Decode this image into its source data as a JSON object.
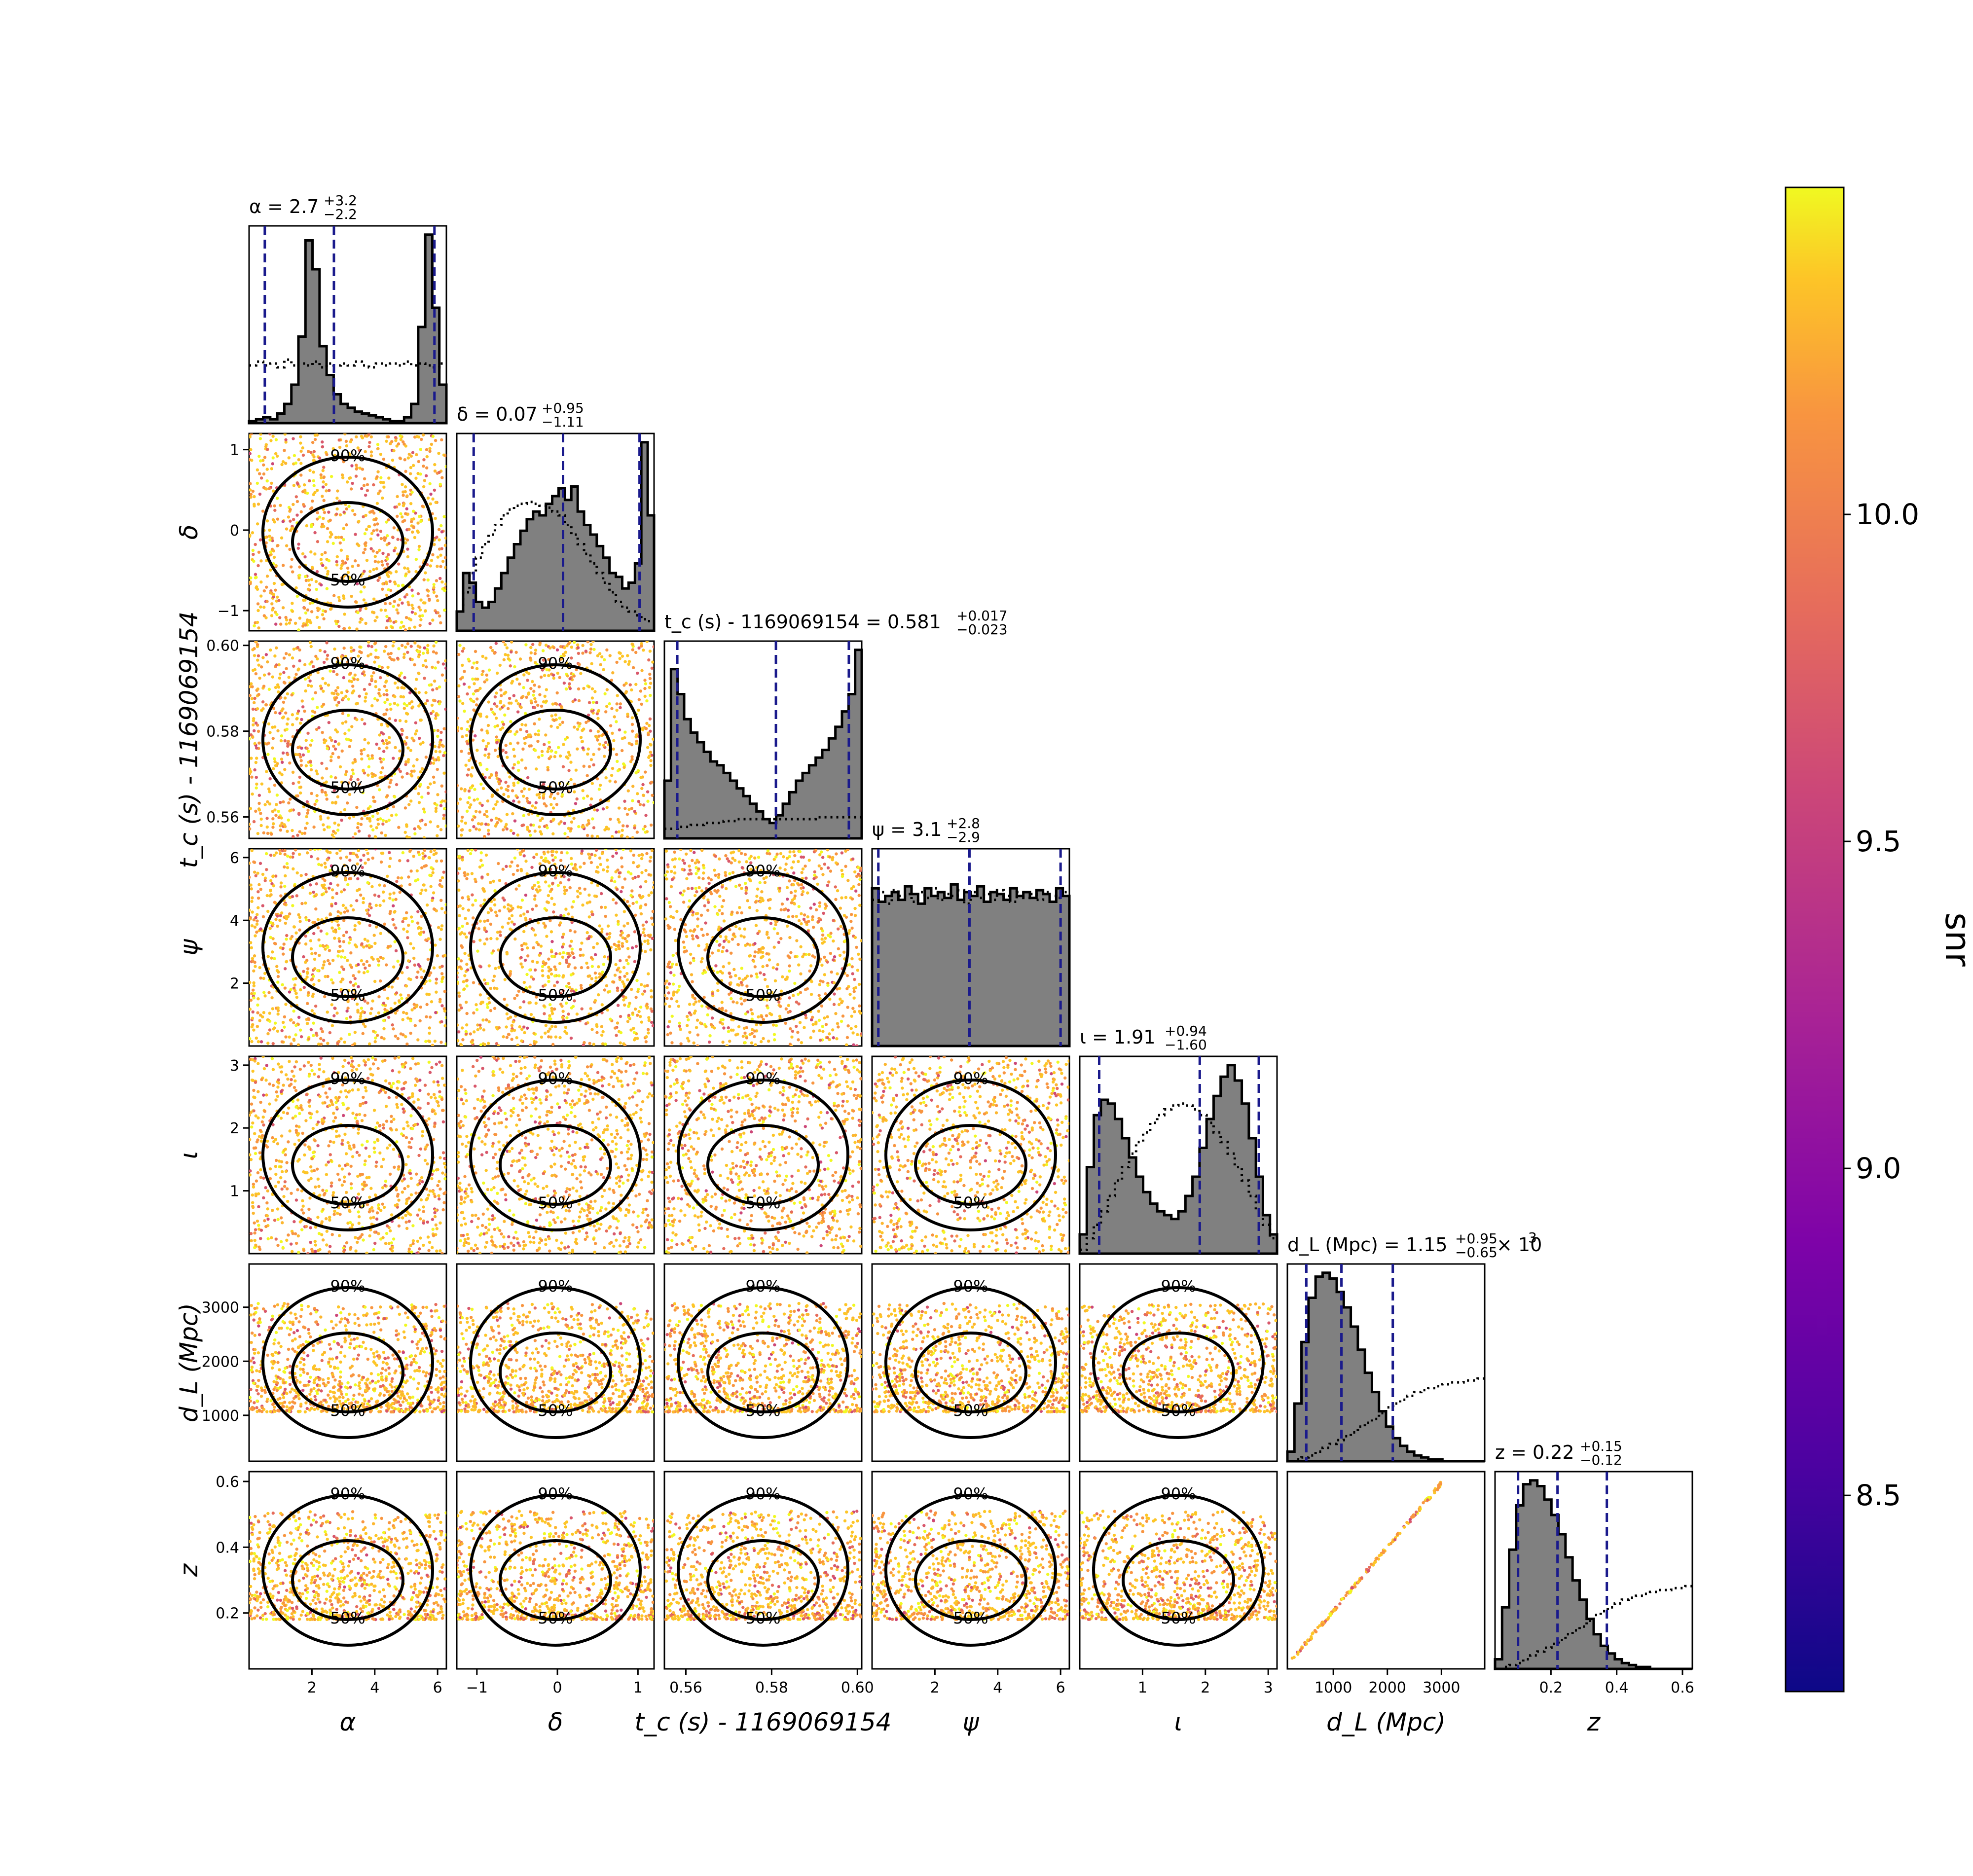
{
  "parameters": [
    {
      "key": "ra",
      "label": "α",
      "range": [
        0,
        6.28
      ],
      "ticks": [
        2,
        4,
        6
      ],
      "tick_labels": [
        "2",
        "4",
        "6"
      ],
      "median": 2.7,
      "lower": 0.5,
      "upper": 5.9,
      "title": "α = 2.7",
      "err_up": "+3.2",
      "err_dn": "−2.2",
      "hist_bins": [
        0.01,
        0.02,
        0.03,
        0.02,
        0.05,
        0.1,
        0.2,
        0.45,
        0.95,
        0.8,
        0.4,
        0.25,
        0.15,
        0.1,
        0.08,
        0.06,
        0.05,
        0.04,
        0.03,
        0.02,
        0.01,
        0.01,
        0.03,
        0.1,
        0.5,
        0.98,
        0.6,
        0.2
      ],
      "prior_bins": [
        0.3,
        0.32,
        0.3,
        0.31,
        0.29,
        0.33,
        0.3,
        0.31,
        0.3,
        0.32,
        0.29,
        0.31,
        0.3,
        0.31,
        0.3,
        0.32,
        0.3,
        0.29,
        0.31,
        0.3,
        0.31,
        0.3,
        0.32,
        0.3,
        0.31,
        0.3,
        0.29,
        0.31
      ]
    },
    {
      "key": "dec",
      "label": "δ",
      "range": [
        -1.25,
        1.2
      ],
      "ticks": [
        -1,
        0,
        1
      ],
      "tick_labels": [
        "−1",
        "0",
        "1"
      ],
      "median": 0.07,
      "lower": -1.04,
      "upper": 1.02,
      "title": "δ = 0.07",
      "err_up": "+0.95",
      "err_dn": "−1.11",
      "hist_bins": [
        0.1,
        0.3,
        0.25,
        0.15,
        0.12,
        0.15,
        0.22,
        0.3,
        0.38,
        0.45,
        0.52,
        0.58,
        0.62,
        0.6,
        0.66,
        0.7,
        0.74,
        0.68,
        0.75,
        0.62,
        0.55,
        0.5,
        0.44,
        0.38,
        0.3,
        0.28,
        0.22,
        0.25,
        0.35,
        0.98,
        0.6
      ],
      "prior_bins": [
        0.1,
        0.2,
        0.3,
        0.38,
        0.45,
        0.5,
        0.55,
        0.6,
        0.63,
        0.65,
        0.66,
        0.67,
        0.66,
        0.65,
        0.64,
        0.62,
        0.6,
        0.55,
        0.5,
        0.45,
        0.4,
        0.35,
        0.3,
        0.25,
        0.2,
        0.15,
        0.12,
        0.1,
        0.08,
        0.06,
        0.05
      ]
    },
    {
      "key": "tc",
      "label": "t_c (s) - 1169069154",
      "range": [
        0.555,
        0.601
      ],
      "ticks": [
        0.56,
        0.58,
        0.6
      ],
      "tick_labels": [
        "0.56",
        "0.58",
        "0.60"
      ],
      "median": 0.581,
      "lower": 0.558,
      "upper": 0.598,
      "title": "t_c (s) - 1169069154 = 0.581",
      "err_up": "+0.017",
      "err_dn": "−0.023",
      "hist_bins": [
        0.3,
        0.88,
        0.75,
        0.62,
        0.55,
        0.5,
        0.45,
        0.4,
        0.38,
        0.34,
        0.3,
        0.26,
        0.22,
        0.18,
        0.14,
        0.1,
        0.08,
        0.12,
        0.18,
        0.24,
        0.3,
        0.34,
        0.38,
        0.42,
        0.46,
        0.52,
        0.58,
        0.66,
        0.75,
        0.98
      ],
      "prior_bins": [
        0.05,
        0.05,
        0.06,
        0.06,
        0.07,
        0.07,
        0.08,
        0.08,
        0.08,
        0.09,
        0.09,
        0.1,
        0.1,
        0.1,
        0.1,
        0.1,
        0.1,
        0.1,
        0.1,
        0.1,
        0.1,
        0.1,
        0.1,
        0.11,
        0.11,
        0.11,
        0.11,
        0.11,
        0.11,
        0.11
      ]
    },
    {
      "key": "psi",
      "label": "ψ",
      "range": [
        0,
        6.28
      ],
      "ticks": [
        2,
        4,
        6
      ],
      "tick_labels": [
        "2",
        "4",
        "6"
      ],
      "median": 3.1,
      "lower": 0.2,
      "upper": 6.0,
      "title": "ψ = 3.1",
      "err_up": "+2.8",
      "err_dn": "−2.9",
      "hist_bins": [
        0.82,
        0.75,
        0.78,
        0.8,
        0.76,
        0.83,
        0.79,
        0.74,
        0.82,
        0.78,
        0.8,
        0.77,
        0.84,
        0.76,
        0.8,
        0.78,
        0.83,
        0.75,
        0.8,
        0.79,
        0.76,
        0.82,
        0.78,
        0.8,
        0.77,
        0.81,
        0.79,
        0.75,
        0.82,
        0.78
      ],
      "prior_bins": [
        0.76,
        0.8,
        0.74,
        0.81,
        0.78,
        0.79,
        0.75,
        0.8,
        0.77,
        0.82,
        0.76,
        0.79,
        0.78,
        0.81,
        0.74,
        0.8,
        0.77,
        0.79,
        0.76,
        0.81,
        0.78,
        0.75,
        0.8,
        0.77,
        0.79,
        0.76,
        0.8,
        0.78,
        0.77,
        0.8
      ]
    },
    {
      "key": "iota",
      "label": "ι",
      "range": [
        0,
        3.14
      ],
      "ticks": [
        1,
        2,
        3
      ],
      "tick_labels": [
        "1",
        "2",
        "3"
      ],
      "median": 1.91,
      "lower": 0.31,
      "upper": 2.85,
      "title": "ι = 1.91",
      "err_up": "+0.94",
      "err_dn": "−1.60",
      "hist_bins": [
        0.1,
        0.45,
        0.72,
        0.8,
        0.78,
        0.7,
        0.6,
        0.5,
        0.4,
        0.32,
        0.26,
        0.22,
        0.2,
        0.18,
        0.22,
        0.3,
        0.4,
        0.55,
        0.7,
        0.82,
        0.92,
        0.98,
        0.9,
        0.78,
        0.6,
        0.4,
        0.2,
        0.1
      ],
      "prior_bins": [
        0.02,
        0.08,
        0.15,
        0.22,
        0.3,
        0.38,
        0.45,
        0.52,
        0.58,
        0.63,
        0.68,
        0.72,
        0.75,
        0.77,
        0.78,
        0.77,
        0.75,
        0.72,
        0.68,
        0.63,
        0.58,
        0.52,
        0.45,
        0.38,
        0.3,
        0.22,
        0.15,
        0.08
      ]
    },
    {
      "key": "dl",
      "label": "d_L (Mpc)",
      "range": [
        150,
        3800
      ],
      "ticks": [
        1000,
        2000,
        3000
      ],
      "tick_labels": [
        "1000",
        "2000",
        "3000"
      ],
      "median": 1150,
      "lower": 500,
      "upper": 2100,
      "title": "d_L (Mpc) = 1.15",
      "err_up": "+0.95",
      "err_dn": "−0.65",
      "title_suffix": "× 10",
      "hist_bins": [
        0.05,
        0.3,
        0.62,
        0.85,
        0.96,
        0.98,
        0.95,
        0.88,
        0.8,
        0.7,
        0.58,
        0.46,
        0.36,
        0.26,
        0.18,
        0.12,
        0.08,
        0.05,
        0.03,
        0.02,
        0.01,
        0.01,
        0,
        0,
        0,
        0,
        0,
        0
      ],
      "prior_bins": [
        0.0,
        0.01,
        0.02,
        0.03,
        0.05,
        0.07,
        0.09,
        0.11,
        0.13,
        0.15,
        0.18,
        0.2,
        0.22,
        0.25,
        0.28,
        0.3,
        0.32,
        0.34,
        0.36,
        0.37,
        0.38,
        0.39,
        0.4,
        0.41,
        0.41,
        0.42,
        0.42,
        0.43
      ]
    },
    {
      "key": "z",
      "label": "z",
      "range": [
        0.03,
        0.63
      ],
      "ticks": [
        0.2,
        0.4,
        0.6
      ],
      "tick_labels": [
        "0.2",
        "0.4",
        "0.6"
      ],
      "median": 0.22,
      "lower": 0.1,
      "upper": 0.37,
      "title": "z = 0.22",
      "err_up": "+0.15",
      "err_dn": "−0.12",
      "hist_bins": [
        0.05,
        0.32,
        0.62,
        0.85,
        0.96,
        0.98,
        0.95,
        0.88,
        0.8,
        0.7,
        0.58,
        0.46,
        0.36,
        0.26,
        0.18,
        0.12,
        0.08,
        0.05,
        0.03,
        0.02,
        0.01,
        0.01,
        0,
        0,
        0,
        0,
        0,
        0
      ],
      "prior_bins": [
        0.0,
        0.01,
        0.02,
        0.03,
        0.05,
        0.07,
        0.09,
        0.11,
        0.13,
        0.15,
        0.18,
        0.2,
        0.22,
        0.25,
        0.28,
        0.3,
        0.32,
        0.34,
        0.36,
        0.37,
        0.38,
        0.39,
        0.4,
        0.41,
        0.41,
        0.42,
        0.42,
        0.43
      ]
    }
  ],
  "chart_data": {
    "type": "corner",
    "parameters": [
      "α",
      "δ",
      "t_c (s) - 1169069154",
      "ψ",
      "ι",
      "d_L (Mpc)",
      "z"
    ],
    "medians": [
      2.7,
      0.07,
      0.581,
      3.1,
      1.91,
      1150,
      0.22
    ],
    "upper_errors": [
      3.2,
      0.95,
      0.017,
      2.8,
      0.94,
      950,
      0.15
    ],
    "lower_errors": [
      2.2,
      1.11,
      0.023,
      2.9,
      1.6,
      650,
      0.12
    ],
    "contour_levels": [
      "50%",
      "90%"
    ],
    "colorbar": {
      "label": "snr",
      "range": [
        8.2,
        10.5
      ],
      "ticks": [
        8.5,
        9.0,
        9.5,
        10.0
      ],
      "tick_labels": [
        "8.5",
        "9.0",
        "9.5",
        "10.0"
      ],
      "colormap": "plasma"
    }
  },
  "contour_labels": {
    "c50": "50%",
    "c90": "90%"
  },
  "title_exponent": "3",
  "colors": {
    "hist_fill": "#808080",
    "median_line": "#1a1a8c",
    "contour": "#000000"
  }
}
